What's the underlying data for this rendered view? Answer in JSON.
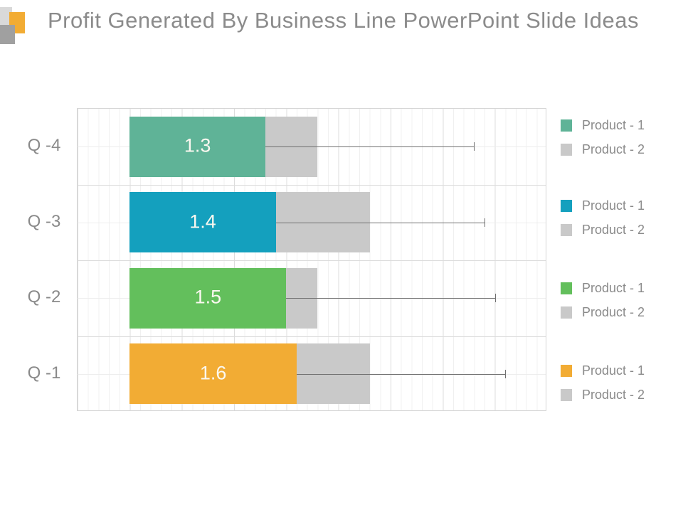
{
  "slide": {
    "title": "Profit Generated By Business Line PowerPoint Slide Ideas"
  },
  "colors": {
    "title_text": "#8B8B8B",
    "axis_text": "#8A8A8A",
    "value_label_text": "#FBF8F0",
    "product2_gray": "#C9C9C9",
    "whisker_line": "#707070",
    "deco_light_gray": "#D9D9D9",
    "deco_orange": "#F2AC34",
    "deco_dark_gray": "#A0A0A0"
  },
  "chart_data": {
    "type": "bar",
    "orientation": "horizontal",
    "title": "",
    "categories": [
      "Q -4",
      "Q -3",
      "Q -2",
      "Q -1"
    ],
    "series": [
      {
        "name": "Product - 1",
        "values": [
          1.3,
          1.4,
          1.5,
          1.6
        ],
        "colors": [
          "#5FB397",
          "#14A0BE",
          "#63BF5C",
          "#F2AC34"
        ],
        "data_labels": [
          "1.3",
          "1.4",
          "1.5",
          "1.6"
        ]
      },
      {
        "name": "Product - 2",
        "values": [
          1.8,
          2.3,
          1.8,
          2.3
        ],
        "color": "#C9C9C9",
        "data_labels": []
      }
    ],
    "error_whisker_ends": [
      3.3,
      3.4,
      3.5,
      3.6
    ],
    "x_axis": {
      "min": -0.5,
      "max": 4.0,
      "major_gridline_step": 0.5,
      "minor_gridline_step": 0.1,
      "tick_labels_visible": false
    },
    "grid": "on",
    "legend": {
      "position": "right",
      "groups": [
        {
          "entries": [
            {
              "label": "Product - 1",
              "color": "#5FB397"
            },
            {
              "label": "Product - 2",
              "color": "#C9C9C9"
            }
          ]
        },
        {
          "entries": [
            {
              "label": "Product - 1",
              "color": "#14A0BE"
            },
            {
              "label": "Product - 2",
              "color": "#C9C9C9"
            }
          ]
        },
        {
          "entries": [
            {
              "label": "Product - 1",
              "color": "#63BF5C"
            },
            {
              "label": "Product - 2",
              "color": "#C9C9C9"
            }
          ]
        },
        {
          "entries": [
            {
              "label": "Product - 1",
              "color": "#F2AC34"
            },
            {
              "label": "Product - 2",
              "color": "#C9C9C9"
            }
          ]
        }
      ]
    }
  }
}
